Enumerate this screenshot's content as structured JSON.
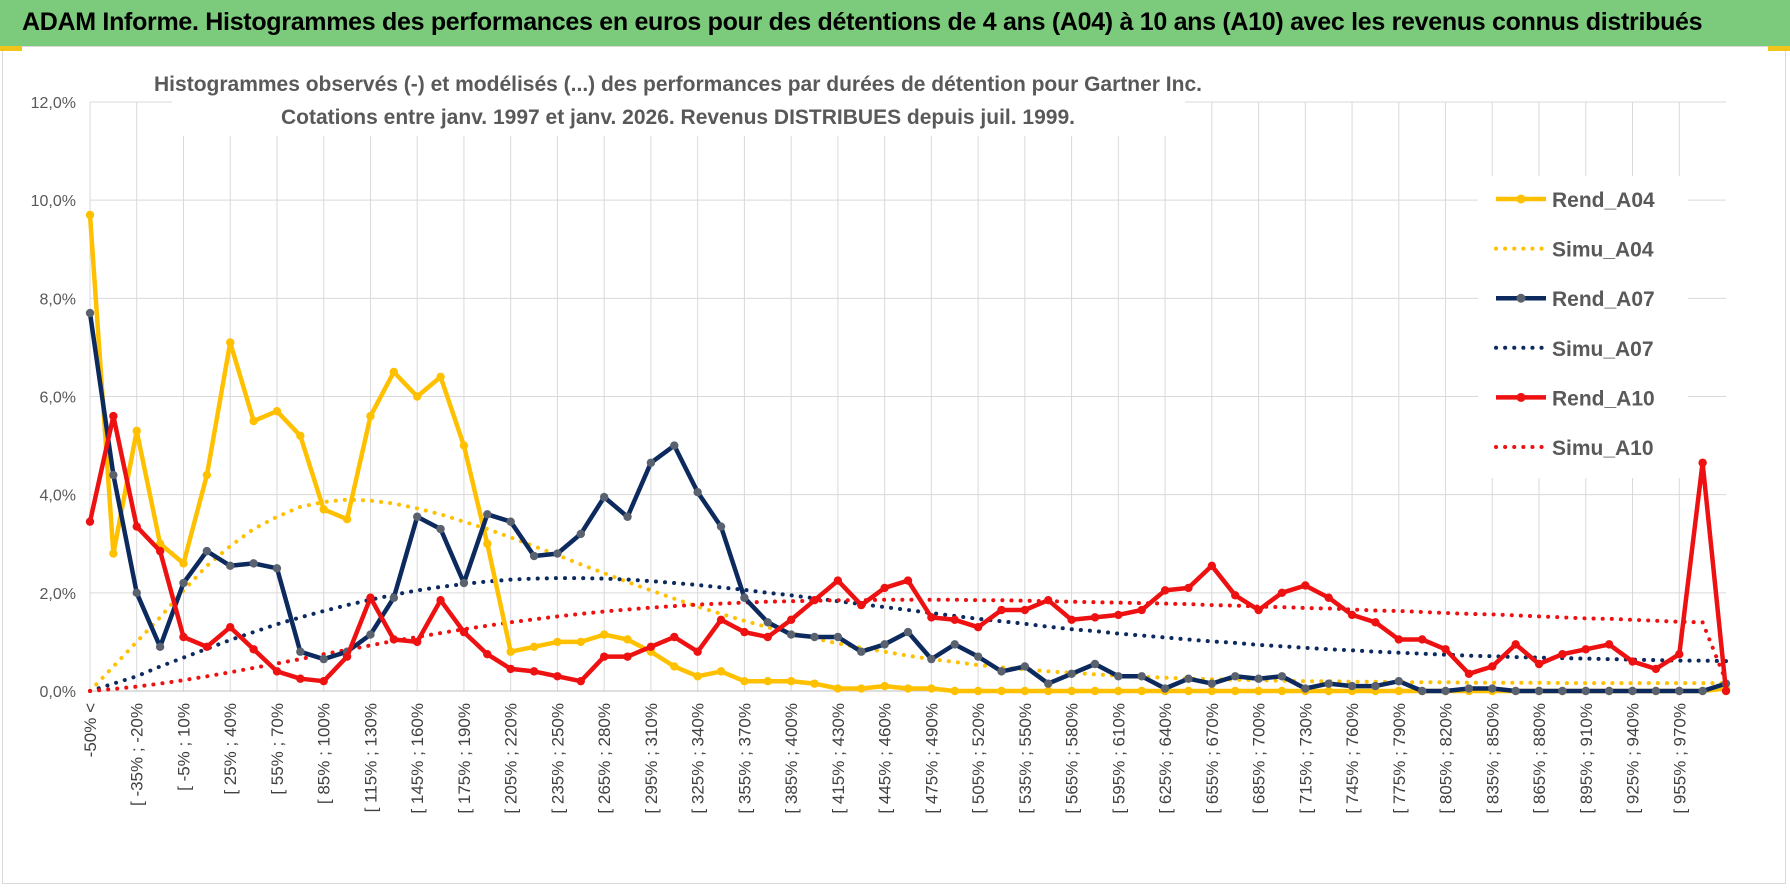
{
  "banner": {
    "title": "ADAM Informe. Histogrammes des performances en euros pour des détentions de 4 ans (A04) à 10 ans (A10) avec les revenus connus distribués"
  },
  "chart_data": {
    "type": "line",
    "title_line1": "Histogrammes observés (-) et modélisés (...) des performances par durées de détention pour Gartner Inc.",
    "title_line2": "Cotations entre janv. 1997 et janv. 2026. Revenus DISTRIBUES depuis juil. 1999.",
    "xlabel": "",
    "ylabel": "",
    "ylim": [
      0,
      12
    ],
    "y_ticks": [
      "0,0%",
      "2,0%",
      "4,0%",
      "6,0%",
      "8,0%",
      "10,0%",
      "12,0%"
    ],
    "x_tick_labels": [
      "-50% <",
      "[ -35% ; -20%",
      "[ -5% ; 10%",
      "[ 25% ; 40%",
      "[ 55% ; 70%",
      "[ 85% ; 100%",
      "[ 115% ; 130%",
      "[ 145% ; 160%",
      "[ 175% ; 190%",
      "[ 205% ; 220%",
      "[ 235% ; 250%",
      "[ 265% ; 280%",
      "[ 295% ; 310%",
      "[ 325% ; 340%",
      "[ 355% ; 370%",
      "[ 385% ; 400%",
      "[ 415% ; 430%",
      "[ 445% ; 460%",
      "[ 475% ; 490%",
      "[ 505% ; 520%",
      "[ 535% ; 550%",
      "[ 565% ; 580%",
      "[ 595% ; 610%",
      "[ 625% ; 640%",
      "[ 655% ; 670%",
      "[ 685% ; 700%",
      "[ 715% ; 730%",
      "[ 745% ; 760%",
      "[ 775% ; 790%",
      "[ 805% ; 820%",
      "[ 835% ; 850%",
      "[ 865% ; 880%",
      "[ 895% ; 910%",
      "[ 925% ; 940%",
      "[ 955% ; 970%"
    ],
    "n_points": 71,
    "grid": true,
    "legend_position": "right",
    "series": [
      {
        "name": "Rend_A04",
        "style": "solid",
        "markers": true,
        "color": "#ffc000",
        "values": [
          9.7,
          2.8,
          5.3,
          3.0,
          2.6,
          4.4,
          7.1,
          5.5,
          5.7,
          5.2,
          3.7,
          3.5,
          5.6,
          6.5,
          6.0,
          6.4,
          5.0,
          3.0,
          0.8,
          0.9,
          1.0,
          1.0,
          1.15,
          1.05,
          0.8,
          0.5,
          0.3,
          0.4,
          0.2,
          0.2,
          0.2,
          0.15,
          0.05,
          0.05,
          0.1,
          0.05,
          0.05,
          0.0,
          0.0,
          0.0,
          0.0,
          0.0,
          0.0,
          0.0,
          0.0,
          0.0,
          0.0,
          0.0,
          0.0,
          0.0,
          0.0,
          0.0,
          0.0,
          0.0,
          0.0,
          0.0,
          0.0,
          0.0,
          0.0,
          0.0,
          0.0,
          0.0,
          0.0,
          0.0,
          0.0,
          0.0,
          0.0,
          0.0,
          0.0,
          0.0,
          0.05
        ]
      },
      {
        "name": "Simu_A04",
        "style": "dotted",
        "markers": false,
        "color": "#ffc000",
        "values": [
          0.0,
          0.5,
          1.0,
          1.5,
          2.05,
          2.55,
          2.95,
          3.3,
          3.55,
          3.75,
          3.85,
          3.9,
          3.88,
          3.82,
          3.72,
          3.6,
          3.45,
          3.3,
          3.13,
          2.95,
          2.77,
          2.58,
          2.4,
          2.22,
          2.05,
          1.88,
          1.72,
          1.57,
          1.43,
          1.3,
          1.18,
          1.07,
          0.97,
          0.88,
          0.8,
          0.72,
          0.65,
          0.59,
          0.53,
          0.48,
          0.44,
          0.4,
          0.37,
          0.34,
          0.31,
          0.29,
          0.27,
          0.25,
          0.24,
          0.23,
          0.22,
          0.21,
          0.2,
          0.2,
          0.19,
          0.19,
          0.18,
          0.18,
          0.18,
          0.17,
          0.17,
          0.17,
          0.17,
          0.16,
          0.16,
          0.16,
          0.16,
          0.16,
          0.16,
          0.16,
          0.16
        ]
      },
      {
        "name": "Rend_A07",
        "style": "solid",
        "markers": true,
        "color": "#0d2a5e",
        "values": [
          7.7,
          4.4,
          2.0,
          0.9,
          2.2,
          2.85,
          2.55,
          2.6,
          2.5,
          0.8,
          0.65,
          0.8,
          1.15,
          1.9,
          3.55,
          3.3,
          2.2,
          3.6,
          3.45,
          2.75,
          2.8,
          3.2,
          3.95,
          3.55,
          4.65,
          5.0,
          4.05,
          3.35,
          1.9,
          1.4,
          1.15,
          1.1,
          1.1,
          0.8,
          0.95,
          1.2,
          0.65,
          0.95,
          0.7,
          0.4,
          0.5,
          0.15,
          0.35,
          0.55,
          0.3,
          0.3,
          0.05,
          0.25,
          0.15,
          0.3,
          0.25,
          0.3,
          0.05,
          0.15,
          0.1,
          0.1,
          0.2,
          0.0,
          0.0,
          0.05,
          0.05,
          0.0,
          0.0,
          0.0,
          0.0,
          0.0,
          0.0,
          0.0,
          0.0,
          0.0,
          0.15
        ]
      },
      {
        "name": "Simu_A07",
        "style": "dotted",
        "markers": false,
        "color": "#0d2a5e",
        "values": [
          0.0,
          0.15,
          0.3,
          0.5,
          0.68,
          0.86,
          1.04,
          1.2,
          1.36,
          1.5,
          1.63,
          1.75,
          1.86,
          1.96,
          2.05,
          2.12,
          2.18,
          2.23,
          2.27,
          2.29,
          2.3,
          2.3,
          2.29,
          2.27,
          2.24,
          2.2,
          2.16,
          2.11,
          2.06,
          2.0,
          1.95,
          1.89,
          1.83,
          1.77,
          1.71,
          1.65,
          1.59,
          1.53,
          1.47,
          1.42,
          1.37,
          1.31,
          1.26,
          1.22,
          1.17,
          1.13,
          1.09,
          1.05,
          1.01,
          0.98,
          0.94,
          0.91,
          0.88,
          0.85,
          0.83,
          0.8,
          0.78,
          0.76,
          0.74,
          0.72,
          0.71,
          0.69,
          0.68,
          0.67,
          0.66,
          0.65,
          0.64,
          0.63,
          0.62,
          0.62,
          0.61
        ]
      },
      {
        "name": "Rend_A10",
        "style": "solid",
        "markers": true,
        "color": "#ee1111",
        "values": [
          3.45,
          5.6,
          3.35,
          2.85,
          1.1,
          0.9,
          1.3,
          0.85,
          0.4,
          0.25,
          0.2,
          0.7,
          1.9,
          1.05,
          1.0,
          1.85,
          1.2,
          0.75,
          0.45,
          0.4,
          0.3,
          0.2,
          0.7,
          0.7,
          0.9,
          1.1,
          0.8,
          1.45,
          1.2,
          1.1,
          1.45,
          1.85,
          2.25,
          1.75,
          2.1,
          2.25,
          1.5,
          1.45,
          1.3,
          1.65,
          1.65,
          1.85,
          1.45,
          1.5,
          1.55,
          1.65,
          2.05,
          2.1,
          2.55,
          1.95,
          1.65,
          2.0,
          2.15,
          1.9,
          1.55,
          1.4,
          1.05,
          1.05,
          0.85,
          0.35,
          0.5,
          0.95,
          0.55,
          0.75,
          0.85,
          0.95,
          0.6,
          0.45,
          0.75,
          4.65,
          0.0
        ]
      },
      {
        "name": "Simu_A10",
        "style": "dotted",
        "markers": false,
        "color": "#ee1111",
        "values": [
          0.0,
          0.04,
          0.09,
          0.15,
          0.22,
          0.3,
          0.38,
          0.47,
          0.56,
          0.65,
          0.75,
          0.84,
          0.93,
          1.02,
          1.1,
          1.18,
          1.26,
          1.33,
          1.4,
          1.46,
          1.52,
          1.57,
          1.62,
          1.66,
          1.7,
          1.73,
          1.76,
          1.78,
          1.8,
          1.82,
          1.83,
          1.84,
          1.85,
          1.85,
          1.86,
          1.86,
          1.86,
          1.86,
          1.85,
          1.85,
          1.84,
          1.83,
          1.82,
          1.81,
          1.8,
          1.79,
          1.78,
          1.77,
          1.75,
          1.74,
          1.72,
          1.71,
          1.69,
          1.68,
          1.66,
          1.64,
          1.63,
          1.61,
          1.59,
          1.57,
          1.56,
          1.54,
          1.52,
          1.5,
          1.48,
          1.47,
          1.45,
          1.43,
          1.41,
          1.4,
          0.2
        ]
      }
    ]
  }
}
